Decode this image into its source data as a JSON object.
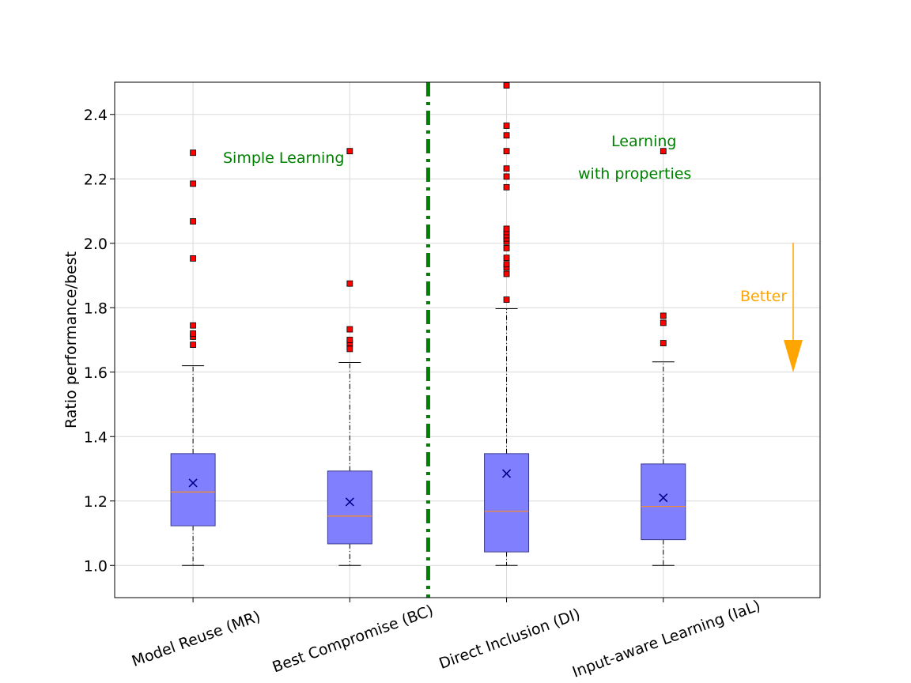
{
  "chart_data": {
    "type": "box",
    "categories": [
      "Model Reuse (MR)",
      "Best Compromise (BC)",
      "Direct Inclusion (DI)",
      "Input-aware Learning (IaL)"
    ],
    "ylabel": "Ratio performance/best",
    "xlabel": "",
    "ylim": [
      0.9,
      2.5
    ],
    "yticks": [
      "1.0",
      "1.2",
      "1.4",
      "1.6",
      "1.8",
      "2.0",
      "2.2",
      "2.4"
    ],
    "grid": true,
    "boxes": [
      {
        "whislo": 1.0,
        "q1": 1.123,
        "median": 1.228,
        "q3": 1.347,
        "whishi": 1.62,
        "mean": 1.256,
        "fliers": [
          1.685,
          1.71,
          1.72,
          1.745,
          1.953,
          2.068,
          2.185,
          2.281
        ]
      },
      {
        "whislo": 1.0,
        "q1": 1.067,
        "median": 1.153,
        "q3": 1.293,
        "whishi": 1.63,
        "mean": 1.197,
        "fliers": [
          1.672,
          1.69,
          1.7,
          1.733,
          1.875,
          2.286
        ]
      },
      {
        "whislo": 1.0,
        "q1": 1.042,
        "median": 1.168,
        "q3": 1.347,
        "whishi": 1.797,
        "mean": 1.285,
        "fliers": [
          1.825,
          1.905,
          1.925,
          1.935,
          1.955,
          1.985,
          2.005,
          2.015,
          2.025,
          2.035,
          2.045,
          2.174,
          2.207,
          2.232,
          2.286,
          2.335,
          2.365,
          2.49
        ]
      },
      {
        "whislo": 1.0,
        "q1": 1.08,
        "median": 1.183,
        "q3": 1.315,
        "whishi": 1.632,
        "mean": 1.21,
        "fliers": [
          1.69,
          1.753,
          1.775,
          2.286
        ]
      }
    ],
    "annotations": {
      "left_group": "Simple Learning",
      "right_group_line1": "Learning",
      "right_group_line2": "with properties",
      "arrow_label": "Better"
    },
    "colors": {
      "box_fill": "#8080ff",
      "box_edge": "#3b3b8f",
      "median": "#ff8c1a",
      "mean_marker": "#00008b",
      "flier": "#ff0000",
      "divider": "#008000",
      "annotation": "#008000",
      "arrow": "#ffa500"
    }
  }
}
